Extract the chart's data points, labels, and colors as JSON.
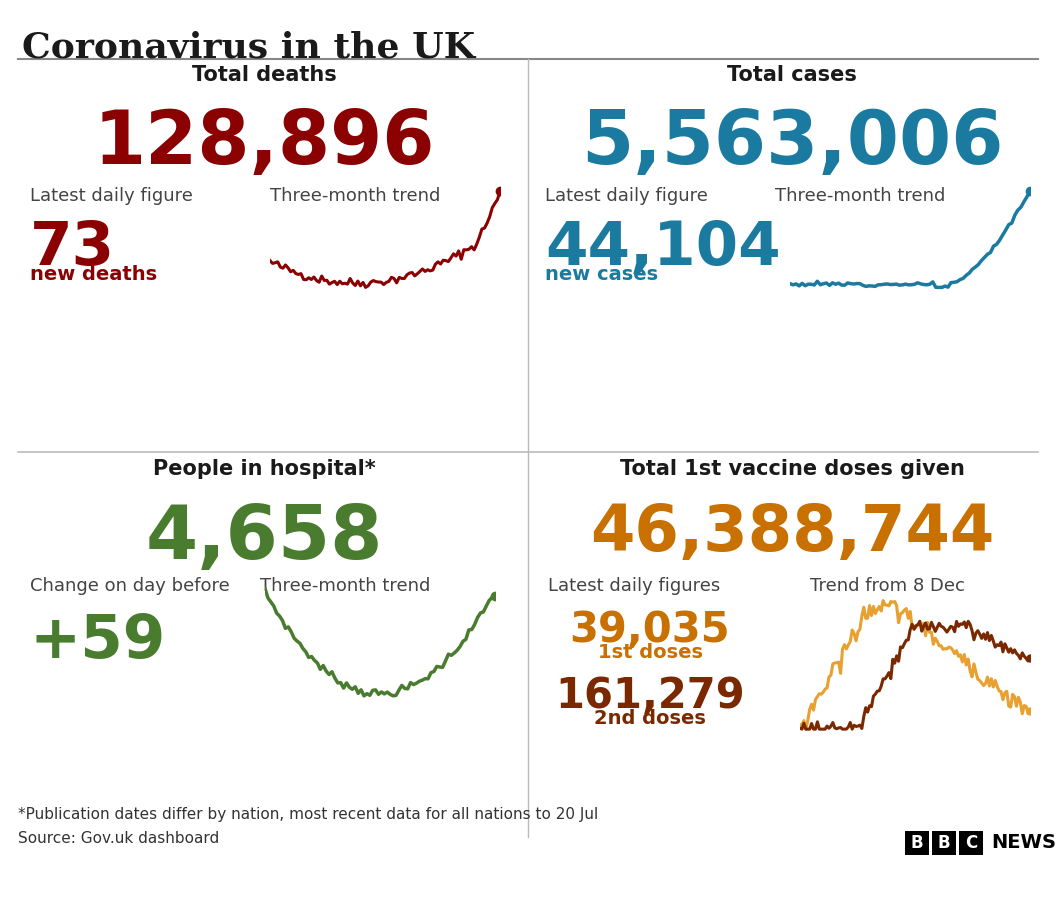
{
  "title": "Coronavirus in the UK",
  "bg_color": "#ffffff",
  "title_color": "#1a1a1a",
  "label_color": "#444444",
  "text_color": "#333333",
  "divider_color": "#aaaaaa",
  "panels": [
    {
      "header": "Total deaths",
      "big_number": "128,896",
      "big_number_color": "#8b0000",
      "sub_label1": "Latest daily figure",
      "sub_label2": "Three-month trend",
      "daily_value": "73",
      "daily_label": "new deaths",
      "daily_color": "#8b0000",
      "trend_color": "#8b0000"
    },
    {
      "header": "Total cases",
      "big_number": "5,563,006",
      "big_number_color": "#1b7a9f",
      "sub_label1": "Latest daily figure",
      "sub_label2": "Three-month trend",
      "daily_value": "44,104",
      "daily_label": "new cases",
      "daily_color": "#1b7a9f",
      "trend_color": "#1b7a9f"
    },
    {
      "header": "People in hospital*",
      "big_number": "4,658",
      "big_number_color": "#4a7c2f",
      "sub_label1": "Change on day before",
      "sub_label2": "Three-month trend",
      "daily_value": "+59",
      "daily_label": "",
      "daily_color": "#4a7c2f",
      "trend_color": "#4a7c2f"
    },
    {
      "header": "Total 1st vaccine doses given",
      "big_number": "46,388,744",
      "big_number_color": "#c87000",
      "sub_label1": "Latest daily figures",
      "sub_label2": "Trend from 8 Dec",
      "daily_value1": "39,035",
      "daily_label1": "1st doses",
      "daily_color1": "#c87000",
      "daily_value2": "161,279",
      "daily_label2": "2nd doses",
      "daily_color2": "#7a2800",
      "trend_color1": "#e8a030",
      "trend_color2": "#7a2800"
    }
  ],
  "footnote": "*Publication dates differ by nation, most recent data for all nations to 20 Jul",
  "source": "Source: Gov.uk dashboard"
}
